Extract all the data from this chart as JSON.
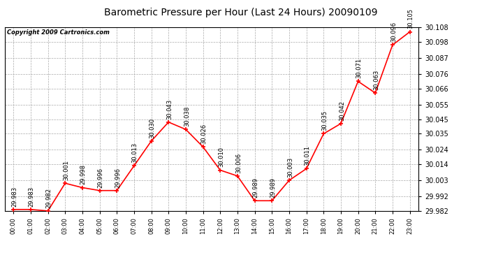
{
  "title": "Barometric Pressure per Hour (Last 24 Hours) 20090109",
  "copyright": "Copyright 2009 Cartronics.com",
  "hours": [
    "00:00",
    "01:00",
    "02:00",
    "03:00",
    "04:00",
    "05:00",
    "06:00",
    "07:00",
    "08:00",
    "09:00",
    "10:00",
    "11:00",
    "12:00",
    "13:00",
    "14:00",
    "15:00",
    "16:00",
    "17:00",
    "18:00",
    "19:00",
    "20:00",
    "21:00",
    "22:00",
    "23:00"
  ],
  "values": [
    29.983,
    29.983,
    29.982,
    30.001,
    29.998,
    29.996,
    29.996,
    30.013,
    30.03,
    30.043,
    30.038,
    30.026,
    30.01,
    30.006,
    29.989,
    29.989,
    30.003,
    30.011,
    30.035,
    30.042,
    30.071,
    30.063,
    30.096,
    30.105
  ],
  "ylim_min": 29.982,
  "ylim_max": 30.108,
  "line_color": "red",
  "marker_color": "red",
  "background_color": "#ffffff",
  "plot_bg_color": "#ffffff",
  "title_fontsize": 10,
  "copyright_fontsize": 6,
  "annotation_fontsize": 6,
  "xtick_fontsize": 6,
  "ytick_fontsize": 7,
  "ytick_values": [
    29.982,
    29.992,
    30.003,
    30.014,
    30.024,
    30.035,
    30.045,
    30.055,
    30.066,
    30.076,
    30.087,
    30.098,
    30.108
  ]
}
